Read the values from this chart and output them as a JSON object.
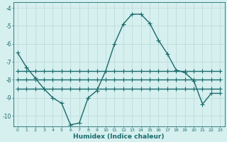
{
  "x": [
    0,
    1,
    2,
    3,
    4,
    5,
    6,
    7,
    8,
    9,
    10,
    11,
    12,
    13,
    14,
    15,
    16,
    17,
    18,
    19,
    20,
    21,
    22,
    23
  ],
  "line_curve": [
    -6.5,
    -7.3,
    -7.9,
    -8.5,
    -9.0,
    -9.3,
    -10.5,
    -10.4,
    -9.0,
    -8.6,
    -7.5,
    -6.0,
    -4.9,
    -4.35,
    -4.35,
    -4.85,
    -5.8,
    -6.55,
    -7.45,
    -7.6,
    -8.05,
    -9.35,
    -8.75,
    -8.75
  ],
  "line_flat1": [
    -7.5,
    -7.5,
    -7.5,
    -7.5,
    -7.5,
    -7.5,
    -7.5,
    -7.5,
    -7.5,
    -7.5,
    -7.5,
    -7.5,
    -7.5,
    -7.5,
    -7.5,
    -7.5,
    -7.5,
    -7.5,
    -7.5,
    -7.5,
    -7.5,
    -7.5,
    -7.5,
    -7.5
  ],
  "line_flat2": [
    -8.0,
    -8.0,
    -8.0,
    -8.0,
    -8.0,
    -8.0,
    -8.0,
    -8.0,
    -8.0,
    -8.0,
    -8.0,
    -8.0,
    -8.0,
    -8.0,
    -8.0,
    -8.0,
    -8.0,
    -8.0,
    -8.0,
    -8.0,
    -8.0,
    -8.0,
    -8.0,
    -8.0
  ],
  "line_flat3": [
    -8.5,
    -8.5,
    -8.5,
    -8.5,
    -8.5,
    -8.5,
    -8.5,
    -8.5,
    -8.5,
    -8.5,
    -8.5,
    -8.5,
    -8.5,
    -8.5,
    -8.5,
    -8.5,
    -8.5,
    -8.5,
    -8.5,
    -8.5,
    -8.5,
    -8.5,
    -8.5,
    -8.5
  ],
  "bg_color": "#d6efef",
  "line_color": "#1a6b6b",
  "grid_color": "#b8d8d8",
  "xlabel": "Humidex (Indice chaleur)",
  "ylim": [
    -10.6,
    -3.7
  ],
  "xlim": [
    -0.5,
    23.5
  ],
  "yticks": [
    -4,
    -5,
    -6,
    -7,
    -8,
    -9,
    -10
  ],
  "xticks": [
    0,
    1,
    2,
    3,
    4,
    5,
    6,
    7,
    8,
    9,
    10,
    11,
    12,
    13,
    14,
    15,
    16,
    17,
    18,
    19,
    20,
    21,
    22,
    23
  ],
  "marker": "+",
  "markersize": 4,
  "linewidth": 1.0
}
